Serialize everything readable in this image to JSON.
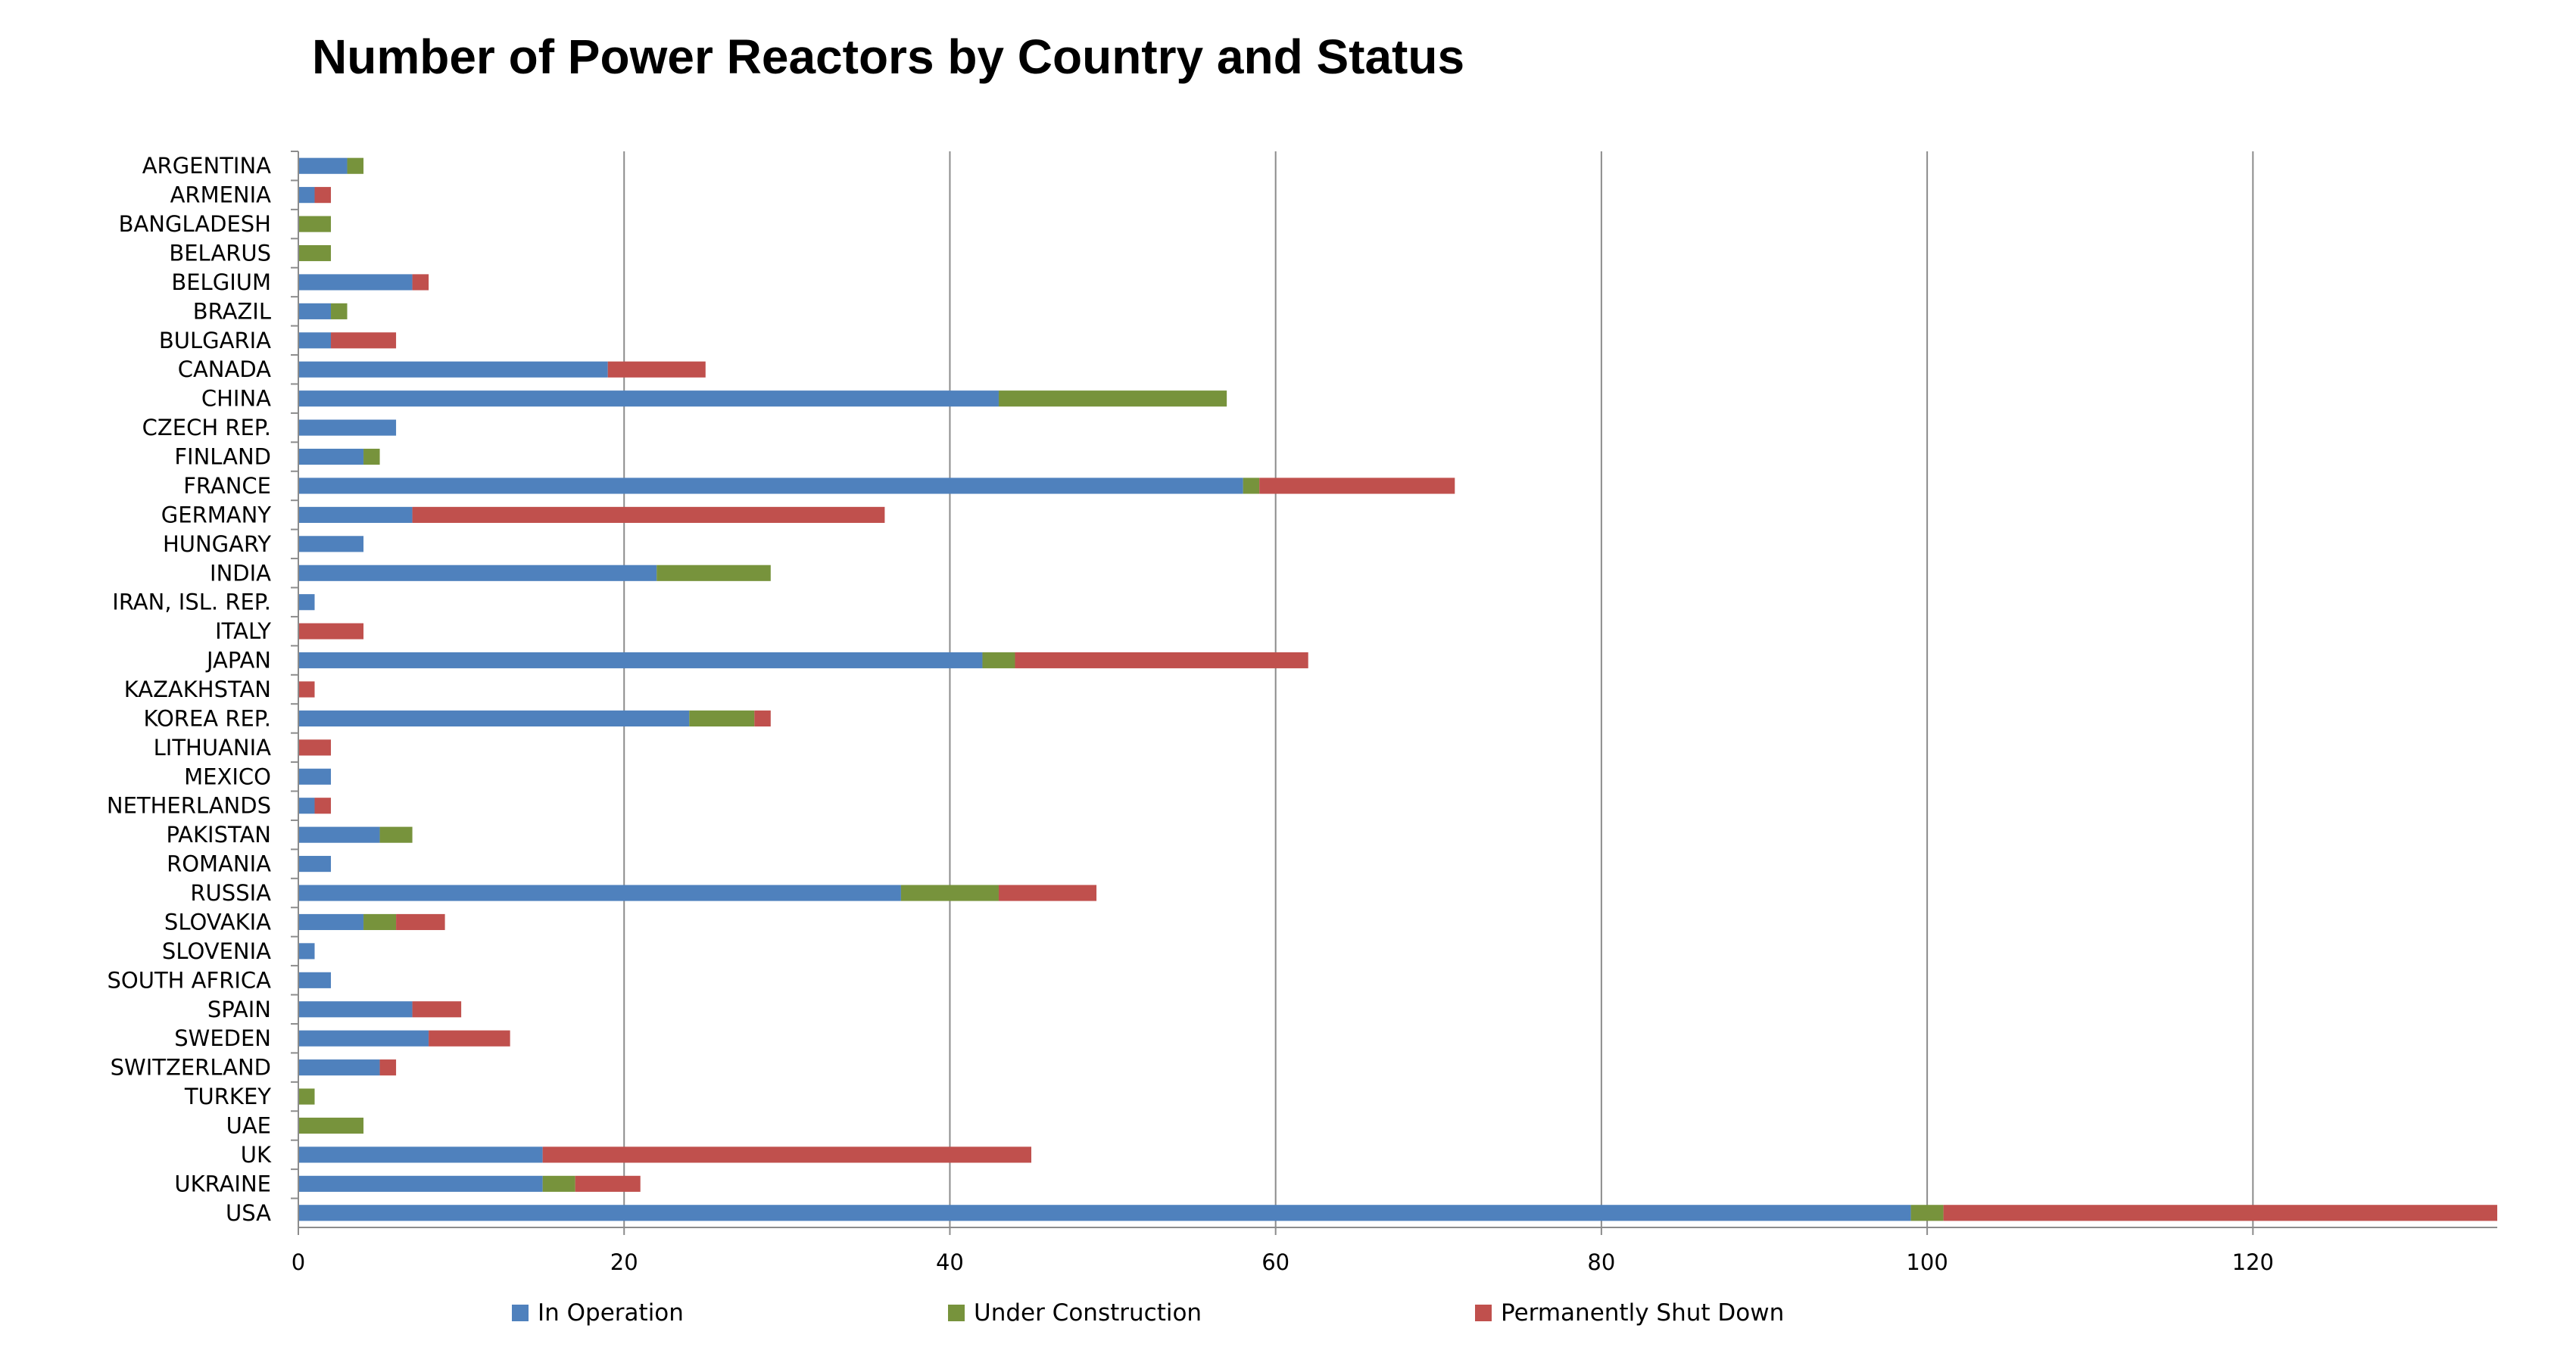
{
  "chart_data": {
    "type": "bar",
    "orientation": "horizontal",
    "stacked": true,
    "title": "Number of Power Reactors by Country and Status",
    "xlabel": "",
    "ylabel": "",
    "xlim": [
      0,
      135
    ],
    "x_ticks": [
      0,
      20,
      40,
      60,
      80,
      100,
      120
    ],
    "grid": "vertical",
    "legend_position": "bottom",
    "categories": [
      "ARGENTINA",
      "ARMENIA",
      "BANGLADESH",
      "BELARUS",
      "BELGIUM",
      "BRAZIL",
      "BULGARIA",
      "CANADA",
      "CHINA",
      "CZECH REP.",
      "FINLAND",
      "FRANCE",
      "GERMANY",
      "HUNGARY",
      "INDIA",
      "IRAN, ISL. REP.",
      "ITALY",
      "JAPAN",
      "KAZAKHSTAN",
      "KOREA REP.",
      "LITHUANIA",
      "MEXICO",
      "NETHERLANDS",
      "PAKISTAN",
      "ROMANIA",
      "RUSSIA",
      "SLOVAKIA",
      "SLOVENIA",
      "SOUTH AFRICA",
      "SPAIN",
      "SWEDEN",
      "SWITZERLAND",
      "TURKEY",
      "UAE",
      "UK",
      "UKRAINE",
      "USA"
    ],
    "series": [
      {
        "name": "In Operation",
        "color": "#4F81BD",
        "values": [
          3,
          1,
          0,
          0,
          7,
          2,
          2,
          19,
          43,
          6,
          4,
          58,
          7,
          4,
          22,
          1,
          0,
          42,
          0,
          24,
          0,
          2,
          1,
          5,
          2,
          37,
          4,
          1,
          2,
          7,
          8,
          5,
          0,
          0,
          15,
          15,
          99
        ]
      },
      {
        "name": "Under Construction",
        "color": "#77933C",
        "values": [
          1,
          0,
          2,
          2,
          0,
          1,
          0,
          0,
          14,
          0,
          1,
          1,
          0,
          0,
          7,
          0,
          0,
          2,
          0,
          4,
          0,
          0,
          0,
          2,
          0,
          6,
          2,
          0,
          0,
          0,
          0,
          0,
          1,
          4,
          0,
          2,
          2
        ]
      },
      {
        "name": "Permanently Shut Down",
        "color": "#C0504D",
        "values": [
          0,
          1,
          0,
          0,
          1,
          0,
          4,
          6,
          0,
          0,
          0,
          12,
          29,
          0,
          0,
          0,
          4,
          18,
          1,
          1,
          2,
          0,
          1,
          0,
          0,
          6,
          3,
          0,
          0,
          3,
          5,
          1,
          0,
          0,
          30,
          4,
          34
        ]
      }
    ]
  }
}
